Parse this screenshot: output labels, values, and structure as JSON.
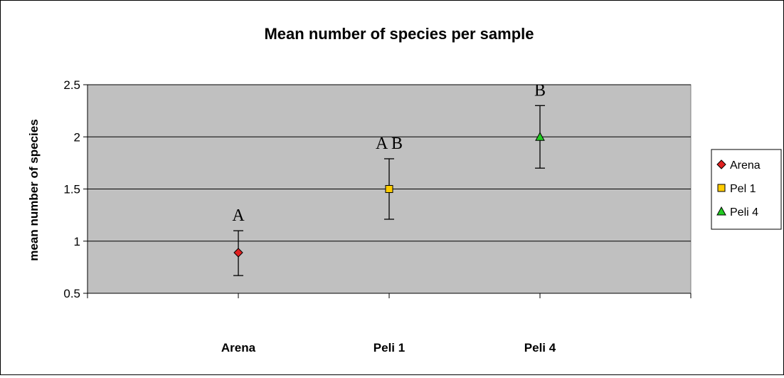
{
  "chart_data": {
    "type": "scatter",
    "title": "Mean number of species per sample",
    "xlabel": "",
    "ylabel": "mean number of species",
    "categories": [
      "Arena",
      "Peli 1",
      "Peli 4"
    ],
    "ylim": [
      0.5,
      2.5
    ],
    "yticks": [
      "0.5",
      "1",
      "1.5",
      "2",
      "2.5"
    ],
    "grid": true,
    "legend_position": "right",
    "plot_background": "#c0c0c0",
    "series": [
      {
        "name": "Arena",
        "category": "Arena",
        "value": 0.89,
        "error_low": 0.67,
        "error_high": 1.1,
        "marker": "diamond",
        "color": "#e02020",
        "annotation": "A"
      },
      {
        "name": "Pel 1",
        "category": "Peli 1",
        "value": 1.5,
        "error_low": 1.21,
        "error_high": 1.79,
        "marker": "square",
        "color": "#ffcc00",
        "annotation": "A B"
      },
      {
        "name": "Peli 4",
        "category": "Peli 4",
        "value": 2.0,
        "error_low": 1.7,
        "error_high": 2.3,
        "marker": "triangle",
        "color": "#22cc22",
        "annotation": "B"
      }
    ]
  }
}
